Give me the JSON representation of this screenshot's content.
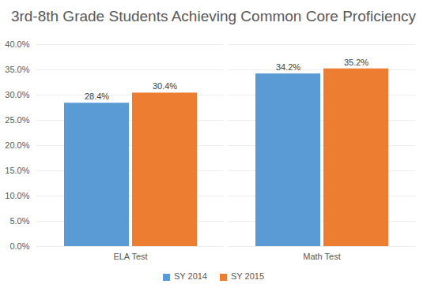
{
  "chart_data": {
    "type": "bar",
    "title": "3rd-8th Grade Students Achieving Common Core Proficiency",
    "categories": [
      "ELA Test",
      "Math Test"
    ],
    "series": [
      {
        "name": "SY 2014",
        "color": "#5b9bd5",
        "values": [
          28.4,
          34.2
        ],
        "value_labels": [
          "28.4%",
          "34.2%"
        ]
      },
      {
        "name": "SY 2015",
        "color": "#ed7d31",
        "values": [
          30.4,
          35.2
        ],
        "value_labels": [
          "30.4%",
          "35.2%"
        ]
      }
    ],
    "ylim": [
      0,
      40
    ],
    "yticks": [
      {
        "value": 0,
        "label": "0.0%"
      },
      {
        "value": 5,
        "label": "5.0%"
      },
      {
        "value": 10,
        "label": "10.0%"
      },
      {
        "value": 15,
        "label": "15.0%"
      },
      {
        "value": 20,
        "label": "20.0%"
      },
      {
        "value": 25,
        "label": "25.0%"
      },
      {
        "value": 30,
        "label": "30.0%"
      },
      {
        "value": 35,
        "label": "35.0%"
      },
      {
        "value": 40,
        "label": "40.0%"
      }
    ],
    "grid": true,
    "legend": "bottom",
    "data_labels": true
  }
}
